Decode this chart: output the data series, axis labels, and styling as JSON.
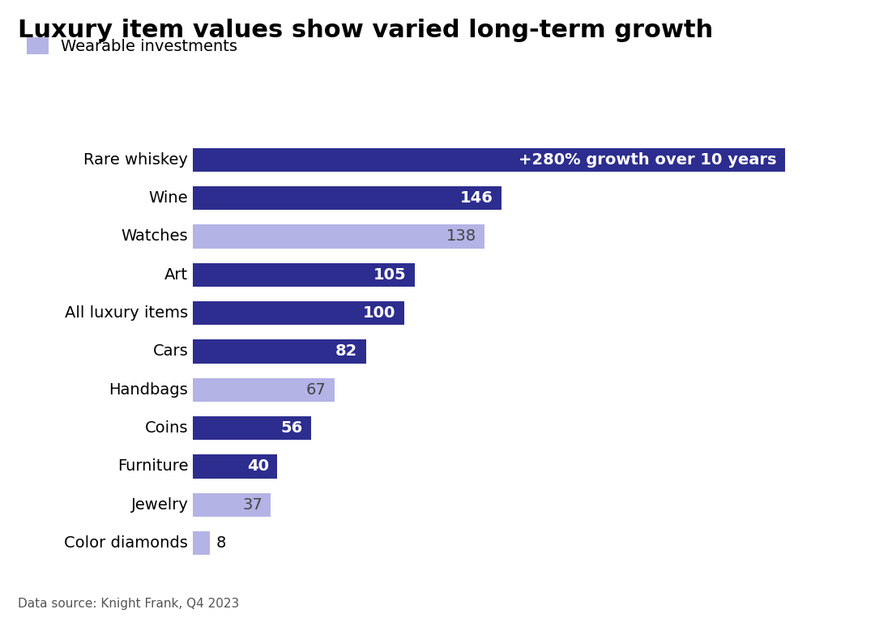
{
  "title": "Luxury item values show varied long-term growth",
  "categories": [
    "Color diamonds",
    "Jewelry",
    "Furniture",
    "Coins",
    "Handbags",
    "Cars",
    "All luxury items",
    "Art",
    "Watches",
    "Wine",
    "Rare whiskey"
  ],
  "values": [
    8,
    37,
    40,
    56,
    67,
    82,
    100,
    105,
    138,
    146,
    280
  ],
  "colors": [
    "#b3b3e6",
    "#b3b3e6",
    "#2d2d8f",
    "#2d2d8f",
    "#b3b3e6",
    "#2d2d8f",
    "#2d2d8f",
    "#2d2d8f",
    "#b3b3e6",
    "#2d2d8f",
    "#2d2d8f"
  ],
  "is_wearable": [
    true,
    true,
    false,
    false,
    true,
    false,
    false,
    false,
    true,
    false,
    false
  ],
  "labels": [
    "8",
    "37",
    "40",
    "56",
    "67",
    "82",
    "100",
    "105",
    "138",
    "146",
    "+280% growth over 10 years"
  ],
  "dark_color": "#2d2d8f",
  "light_color": "#b3b3e6",
  "background_color": "#ffffff",
  "legend_label": "Wearable investments",
  "data_source": "Data source: Knight Frank, Q4 2023",
  "xlim": [
    0,
    310
  ],
  "title_fontsize": 22,
  "label_fontsize": 14,
  "bar_height": 0.62
}
